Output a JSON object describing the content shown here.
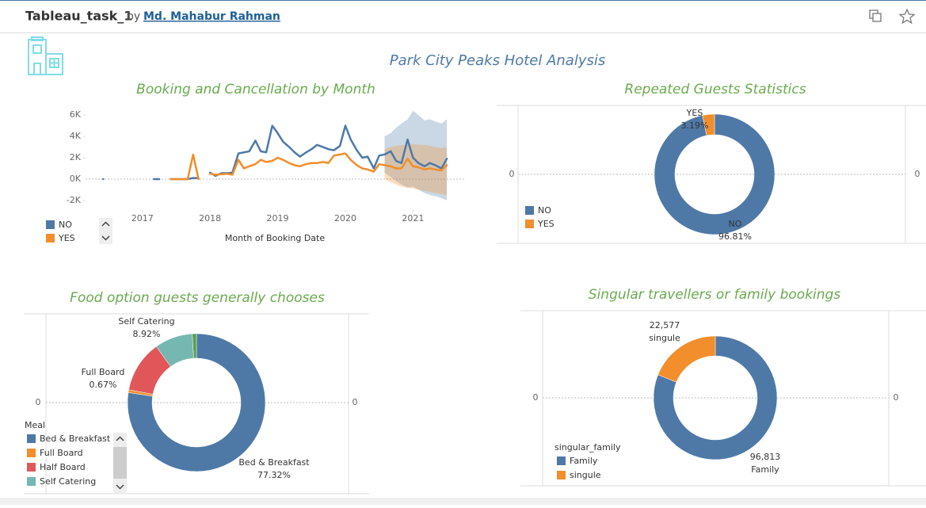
{
  "header": {
    "title": "Tableau_task_1",
    "by": "by",
    "author": "Md. Mahabur Rahman"
  },
  "dashboard_title": "Park City Peaks Hotel Analysis",
  "charts": [
    {
      "type": "line",
      "title": "Booking and Cancellation by Month",
      "x_label": "Month of Booking Date",
      "x": [
        2016.42,
        2016.8,
        2017.17,
        2017.25,
        2017.33,
        2017.42,
        2017.5,
        2017.58,
        2017.67,
        2017.75,
        2017.83,
        2017.92,
        2018,
        2018.08,
        2018.17,
        2018.25,
        2018.33,
        2018.42,
        2018.5,
        2018.58,
        2018.67,
        2018.75,
        2018.83,
        2018.92,
        2019,
        2019.08,
        2019.17,
        2019.25,
        2019.33,
        2019.42,
        2019.5,
        2019.58,
        2019.67,
        2019.75,
        2019.83,
        2019.92,
        2020,
        2020.08,
        2020.17,
        2020.25,
        2020.33,
        2020.42,
        2020.5,
        2020.58,
        2020.67,
        2020.75,
        2020.83,
        2020.92,
        2021,
        2021.08,
        2021.17,
        2021.25,
        2021.33,
        2021.42,
        2021.5
      ],
      "xlim": [
        2016.16,
        2021.78
      ],
      "xticks": [
        2017,
        2018,
        2019,
        2020,
        2021
      ],
      "ylim": [
        -2900,
        6900
      ],
      "yticks": [
        {
          "value": -2000,
          "label": "-2K"
        },
        {
          "value": 0,
          "label": "0K"
        },
        {
          "value": 2000,
          "label": "2K"
        },
        {
          "value": 4000,
          "label": "4K"
        },
        {
          "value": 6000,
          "label": "6K"
        }
      ],
      "forecast_x": [
        2020.58,
        2020.67,
        2020.75,
        2020.83,
        2020.92,
        2021,
        2021.08,
        2021.17,
        2021.25,
        2021.33,
        2021.42,
        2021.5
      ],
      "series": [
        {
          "name": "NO",
          "color": "#4e79a7",
          "values": [
            0,
            null,
            0,
            0,
            null,
            0,
            0,
            0,
            0,
            100,
            100,
            null,
            600,
            300,
            550,
            550,
            600,
            2400,
            2500,
            2600,
            3600,
            2600,
            2500,
            5000,
            4300,
            3500,
            3000,
            2500,
            2100,
            2500,
            2800,
            3200,
            3000,
            2800,
            2700,
            3100,
            5000,
            3700,
            2700,
            2000,
            2100,
            1000,
            2200,
            2300,
            2600,
            1700,
            1500,
            3700,
            2000,
            1500,
            1200,
            1500,
            1300,
            1000,
            1900
          ],
          "band_upper": [
            4000,
            4300,
            4800,
            5200,
            5600,
            6400,
            6000,
            5500,
            5600,
            5400,
            5200,
            5600
          ],
          "band_lower": [
            600,
            200,
            -200,
            -500,
            -800,
            -700,
            -1000,
            -1300,
            -1500,
            -1600,
            -1800,
            -2000
          ]
        },
        {
          "name": "YES",
          "color": "#f28e2b",
          "values": [
            null,
            null,
            null,
            null,
            null,
            0,
            0,
            0,
            0,
            2300,
            0,
            null,
            500,
            400,
            450,
            500,
            400,
            1800,
            1000,
            1200,
            1400,
            1800,
            1600,
            1700,
            2000,
            1800,
            1500,
            1300,
            1200,
            1400,
            1500,
            1500,
            1600,
            1500,
            2200,
            2300,
            2400,
            1800,
            1300,
            1000,
            900,
            700,
            1400,
            1300,
            1200,
            1000,
            1000,
            1900,
            1200,
            1100,
            900,
            1000,
            900,
            800,
            1300
          ],
          "band_upper": [
            2800,
            3000,
            3100,
            3200,
            3200,
            3300,
            3200,
            3200,
            3100,
            3000,
            2900,
            3000
          ],
          "band_lower": [
            0,
            -300,
            -500,
            -700,
            -800,
            -900,
            -1000,
            -1100,
            -1200,
            -1300,
            -1400,
            -1500
          ]
        }
      ]
    },
    {
      "type": "donut",
      "title": "Repeated Guests Statistics",
      "categories": [
        "NO",
        "YES"
      ],
      "values": [
        96.81,
        3.19
      ],
      "value_labels": [
        "96.81%",
        "3.19%"
      ],
      "colors": [
        "#4e79a7",
        "#f28e2b"
      ],
      "side_ticks": [
        0,
        0
      ]
    },
    {
      "type": "donut",
      "title": "Food option guests generally chooses",
      "legend_title": "Meal",
      "categories": [
        "Bed & Breakfast",
        "Full Board",
        "Half Board",
        "Self Catering",
        null
      ],
      "values": [
        77.32,
        0.67,
        12.11,
        8.92,
        0.98
      ],
      "value_labels": [
        "77.32%",
        "0.67%",
        null,
        "8.92%",
        null
      ],
      "colors": [
        "#4e79a7",
        "#f28e2b",
        "#e15759",
        "#76b7b2",
        "#59a14f"
      ],
      "side_ticks": [
        0,
        0
      ]
    },
    {
      "type": "donut",
      "title": "Singular travellers or family bookings",
      "legend_title": "singular_family",
      "categories": [
        "Family",
        "singule"
      ],
      "values": [
        96813,
        22577
      ],
      "value_labels": [
        "96,813",
        "22,577"
      ],
      "colors": [
        "#4e79a7",
        "#f28e2b"
      ],
      "side_ticks": [
        0,
        0
      ]
    }
  ]
}
